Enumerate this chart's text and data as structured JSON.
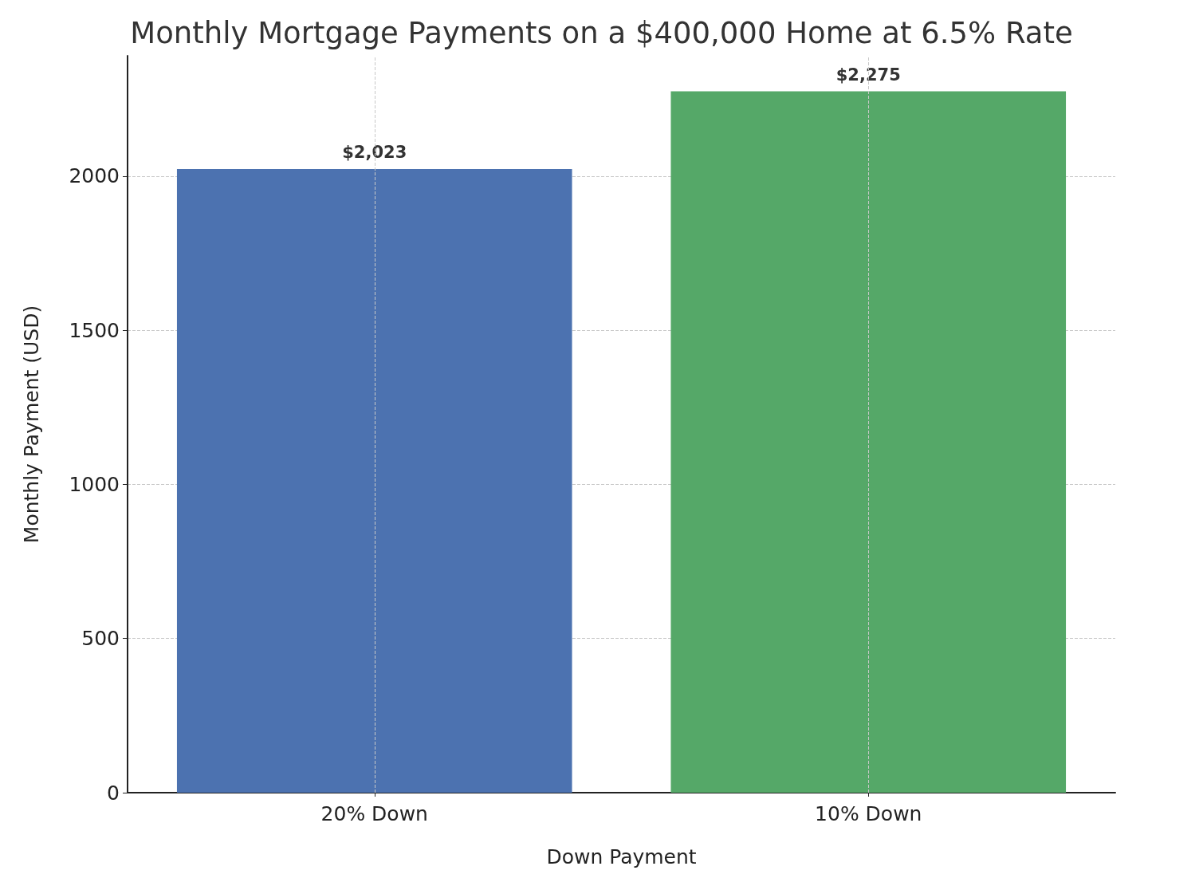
{
  "chart_data": {
    "type": "bar",
    "title": "Monthly Mortgage Payments on a $400,000 Home at 6.5% Rate",
    "xlabel": "Down Payment",
    "ylabel": "Monthly Payment (USD)",
    "categories": [
      "20% Down",
      "10% Down"
    ],
    "values": [
      2023,
      2275
    ],
    "colors": [
      "#4c72b0",
      "#55a868"
    ],
    "value_labels": [
      "$2,023",
      "$2,275"
    ],
    "ylim": [
      0,
      2390
    ],
    "yticks": [
      0,
      500,
      1000,
      1500,
      2000
    ],
    "grid": true
  }
}
